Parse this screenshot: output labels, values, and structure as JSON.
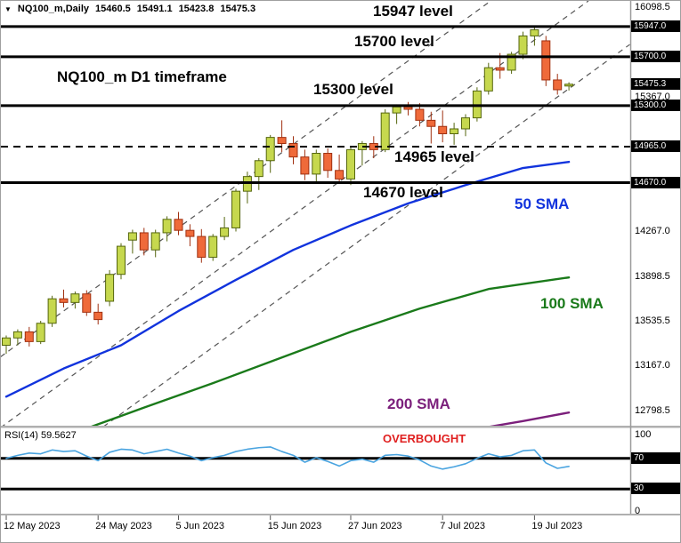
{
  "header": {
    "dropdown_icon": "▼",
    "symbol": "NQ100_m,Daily",
    "open": "15460.5",
    "high": "15491.1",
    "low": "15423.8",
    "close": "15475.3"
  },
  "annotations": {
    "level_15947": "15947 level",
    "level_15700": "15700 level",
    "timeframe": "NQ100_m D1 timeframe",
    "level_15300": "15300 level",
    "level_14965": "14965 level",
    "level_14670": "14670 level",
    "sma50": "50 SMA",
    "sma100": "100 SMA",
    "sma200": "200 SMA",
    "overbought": "OVERBOUGHT",
    "rsi_label": "RSI(14) 59.5627"
  },
  "colors": {
    "bull_candle": "#c6d84e",
    "bull_border": "#55660e",
    "bear_candle": "#ef6a3a",
    "bear_border": "#a03010",
    "sma50": "#1133dd",
    "sma100": "#1a7a1a",
    "sma200": "#7b1f7b",
    "rsi_line": "#4aa4e0",
    "level_line": "#000000",
    "trendline": "#555555",
    "overbought_text": "#e02020",
    "badge_bg": "#000000",
    "badge_text": "#ffffff"
  },
  "price_axis": {
    "ticks": [
      {
        "label": "16098.5",
        "price": 16098.5,
        "badge": false
      },
      {
        "label": "15947.0",
        "price": 15947.0,
        "badge": true
      },
      {
        "label": "15700.0",
        "price": 15700.0,
        "badge": true
      },
      {
        "label": "15475.3",
        "price": 15475.3,
        "badge": true
      },
      {
        "label": "15367.0",
        "price": 15367.0,
        "badge": false
      },
      {
        "label": "15300.0",
        "price": 15300.0,
        "badge": true
      },
      {
        "label": "14965.0",
        "price": 14965.0,
        "badge": true
      },
      {
        "label": "14670.0",
        "price": 14670.0,
        "badge": true
      },
      {
        "label": "14267.0",
        "price": 14267.0,
        "badge": false
      },
      {
        "label": "13898.5",
        "price": 13898.5,
        "badge": false
      },
      {
        "label": "13535.5",
        "price": 13535.5,
        "badge": false
      },
      {
        "label": "13167.0",
        "price": 13167.0,
        "badge": false
      },
      {
        "label": "12798.5",
        "price": 12798.5,
        "badge": false
      }
    ]
  },
  "rsi_axis": [
    {
      "label": "100",
      "value": 100,
      "badge": false
    },
    {
      "label": "70",
      "value": 70,
      "badge": true
    },
    {
      "label": "30",
      "value": 30,
      "badge": true
    },
    {
      "label": "0",
      "value": 0,
      "badge": false
    }
  ],
  "date_axis": [
    {
      "label": "12 May 2023",
      "index": 0
    },
    {
      "label": "24 May 2023",
      "index": 8
    },
    {
      "label": "5 Jun 2023",
      "index": 15
    },
    {
      "label": "15 Jun 2023",
      "index": 23
    },
    {
      "label": "27 Jun 2023",
      "index": 30
    },
    {
      "label": "7 Jul 2023",
      "index": 38
    },
    {
      "label": "19 Jul 2023",
      "index": 46
    }
  ],
  "chart_data": {
    "type": "candlestick",
    "title": "NQ100_m Daily with horizontal levels, trend channel, SMAs and RSI",
    "x_range": {
      "first_date": "12 May 2023",
      "last_date": "24 Jul 2023"
    },
    "y_axis": {
      "top": 16098.5,
      "bottom": 12798.5
    },
    "candles": [
      [
        "12 May",
        13340,
        13420,
        13270,
        13400
      ],
      [
        "15 May",
        13400,
        13470,
        13340,
        13450
      ],
      [
        "16 May",
        13450,
        13490,
        13330,
        13370
      ],
      [
        "17 May",
        13370,
        13540,
        13350,
        13520
      ],
      [
        "18 May",
        13520,
        13745,
        13490,
        13720
      ],
      [
        "19 May",
        13720,
        13795,
        13650,
        13690
      ],
      [
        "22 May",
        13690,
        13780,
        13640,
        13760
      ],
      [
        "23 May",
        13760,
        13790,
        13580,
        13610
      ],
      [
        "24 May",
        13610,
        13680,
        13510,
        13550
      ],
      [
        "25 May",
        13700,
        13955,
        13660,
        13920
      ],
      [
        "26 May",
        13920,
        14175,
        13880,
        14150
      ],
      [
        "30 May",
        14200,
        14285,
        14090,
        14260
      ],
      [
        "31 May",
        14260,
        14300,
        14075,
        14120
      ],
      [
        "1 Jun",
        14120,
        14285,
        14060,
        14260
      ],
      [
        "2 Jun",
        14260,
        14395,
        14190,
        14370
      ],
      [
        "5 Jun",
        14370,
        14430,
        14240,
        14280
      ],
      [
        "6 Jun",
        14280,
        14330,
        14150,
        14230
      ],
      [
        "7 Jun",
        14230,
        14290,
        14015,
        14060
      ],
      [
        "8 Jun",
        14060,
        14250,
        14030,
        14230
      ],
      [
        "9 Jun",
        14230,
        14390,
        14200,
        14300
      ],
      [
        "12 Jun",
        14300,
        14620,
        14270,
        14600
      ],
      [
        "13 Jun",
        14600,
        14760,
        14500,
        14720
      ],
      [
        "14 Jun",
        14720,
        14870,
        14610,
        14850
      ],
      [
        "15 Jun",
        14850,
        15060,
        14750,
        15040
      ],
      [
        "16 Jun",
        15040,
        15180,
        14920,
        14990
      ],
      [
        "20 Jun",
        14990,
        15050,
        14820,
        14880
      ],
      [
        "21 Jun",
        14880,
        14940,
        14690,
        14740
      ],
      [
        "22 Jun",
        14740,
        14940,
        14670,
        14910
      ],
      [
        "23 Jun",
        14910,
        14950,
        14710,
        14770
      ],
      [
        "26 Jun",
        14770,
        14900,
        14670,
        14700
      ],
      [
        "27 Jun",
        14700,
        14960,
        14650,
        14940
      ],
      [
        "28 Jun",
        14940,
        15010,
        14810,
        14990
      ],
      [
        "29 Jun",
        14990,
        15050,
        14870,
        14940
      ],
      [
        "30 Jun",
        14940,
        15270,
        14920,
        15240
      ],
      [
        "3 Jul",
        15240,
        15310,
        15150,
        15290
      ],
      [
        "4 Jul",
        15290,
        15330,
        15220,
        15270
      ],
      [
        "5 Jul",
        15270,
        15320,
        15130,
        15180
      ],
      [
        "6 Jul",
        15180,
        15250,
        14990,
        15130
      ],
      [
        "7 Jul",
        15130,
        15260,
        15000,
        15070
      ],
      [
        "10 Jul",
        15070,
        15160,
        14980,
        15110
      ],
      [
        "11 Jul",
        15110,
        15230,
        15050,
        15200
      ],
      [
        "12 Jul",
        15200,
        15450,
        15170,
        15420
      ],
      [
        "13 Jul",
        15420,
        15650,
        15390,
        15610
      ],
      [
        "14 Jul",
        15610,
        15730,
        15520,
        15590
      ],
      [
        "17 Jul",
        15590,
        15740,
        15560,
        15720
      ],
      [
        "18 Jul",
        15720,
        15905,
        15680,
        15870
      ],
      [
        "19 Jul",
        15870,
        15947,
        15790,
        15920
      ],
      [
        "20 Jul",
        15830,
        15870,
        15460,
        15510
      ],
      [
        "21 Jul",
        15510,
        15560,
        15390,
        15430
      ],
      [
        "24 Jul",
        15460.5,
        15491.1,
        15423.8,
        15475.3
      ]
    ],
    "levels": [
      {
        "price": 15947,
        "style": "solid"
      },
      {
        "price": 15700,
        "style": "solid"
      },
      {
        "price": 15300,
        "style": "solid"
      },
      {
        "price": 14965,
        "style": "dashed"
      },
      {
        "price": 14670,
        "style": "solid"
      }
    ],
    "trendlines": [
      [
        -0.5,
        13245,
        42.2,
        16157
      ],
      [
        -0.5,
        12666,
        50.7,
        16157
      ],
      [
        -0.5,
        12063,
        54.3,
        15800
      ]
    ],
    "sma50": {
      "period": 50,
      "points": [
        [
          0,
          12920
        ],
        [
          5,
          13150
        ],
        [
          10,
          13340
        ],
        [
          15,
          13620
        ],
        [
          20,
          13875
        ],
        [
          25,
          14120
        ],
        [
          30,
          14320
        ],
        [
          35,
          14500
        ],
        [
          40,
          14650
        ],
        [
          45,
          14790
        ],
        [
          49,
          14840
        ]
      ]
    },
    "sma100": {
      "period": 100,
      "points": [
        [
          7,
          12660
        ],
        [
          12,
          12830
        ],
        [
          18,
          13030
        ],
        [
          24,
          13240
        ],
        [
          30,
          13450
        ],
        [
          36,
          13640
        ],
        [
          42,
          13800
        ],
        [
          49,
          13895
        ]
      ]
    },
    "sma200": {
      "period": 200,
      "points": [
        [
          40,
          12640
        ],
        [
          45,
          12720
        ],
        [
          49,
          12790
        ]
      ]
    },
    "rsi": {
      "period": 14,
      "value": 59.5627,
      "overbought_level": 70,
      "oversold_level": 30,
      "points": [
        [
          0,
          70
        ],
        [
          1,
          74
        ],
        [
          2,
          77
        ],
        [
          3,
          76
        ],
        [
          4,
          81
        ],
        [
          5,
          79
        ],
        [
          6,
          80
        ],
        [
          7,
          73
        ],
        [
          8,
          67
        ],
        [
          9,
          78
        ],
        [
          10,
          82
        ],
        [
          11,
          81
        ],
        [
          12,
          76
        ],
        [
          13,
          79
        ],
        [
          14,
          82
        ],
        [
          15,
          77
        ],
        [
          16,
          73
        ],
        [
          17,
          67
        ],
        [
          18,
          71
        ],
        [
          19,
          74
        ],
        [
          20,
          79
        ],
        [
          21,
          82
        ],
        [
          22,
          84
        ],
        [
          23,
          85
        ],
        [
          24,
          79
        ],
        [
          25,
          74
        ],
        [
          26,
          65
        ],
        [
          27,
          71
        ],
        [
          28,
          66
        ],
        [
          29,
          60
        ],
        [
          30,
          67
        ],
        [
          31,
          69
        ],
        [
          32,
          65
        ],
        [
          33,
          74
        ],
        [
          34,
          75
        ],
        [
          35,
          73
        ],
        [
          36,
          68
        ],
        [
          37,
          60
        ],
        [
          38,
          56
        ],
        [
          39,
          59
        ],
        [
          40,
          63
        ],
        [
          41,
          70
        ],
        [
          42,
          76
        ],
        [
          43,
          72
        ],
        [
          44,
          74
        ],
        [
          45,
          80
        ],
        [
          46,
          81
        ],
        [
          47,
          64
        ],
        [
          48,
          57
        ],
        [
          49,
          59.56
        ]
      ]
    }
  }
}
